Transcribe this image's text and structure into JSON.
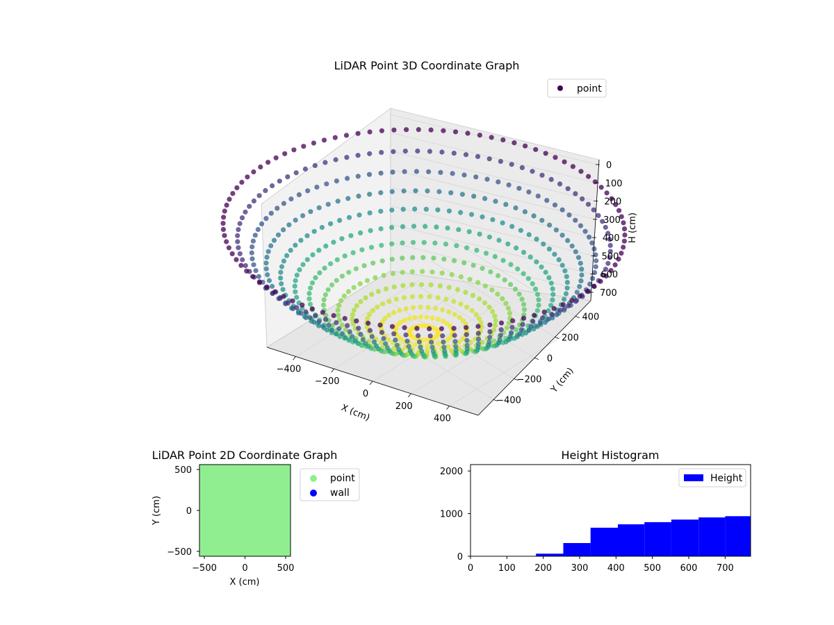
{
  "chart_data": [
    {
      "type": "scatter",
      "projection": "3d",
      "title": "LiDAR Point 3D Coordinate Graph",
      "xlabel": "X (cm)",
      "ylabel": "Y (cm)",
      "zlabel": "H (cm)",
      "xticks": [
        "−400",
        "−200",
        "0",
        "200",
        "400"
      ],
      "yticks": [
        "−400",
        "−200",
        "0",
        "200",
        "400"
      ],
      "zticks": [
        "0",
        "100",
        "200",
        "300",
        "400",
        "500",
        "600",
        "700"
      ],
      "xlim": [
        -550,
        550
      ],
      "ylim": [
        -550,
        550
      ],
      "zlim": [
        0,
        780
      ],
      "z_inverted": true,
      "grid": true,
      "colormap": "viridis",
      "legend": {
        "position": "top-right",
        "entries": [
          {
            "label": "point",
            "color": "#440154"
          }
        ]
      },
      "surface": "bowl-shaped point cloud: height increases from ~780 cm at the center to ~0 cm at radius ~550 cm",
      "series": [
        {
          "name": "point"
        }
      ]
    },
    {
      "type": "scatter",
      "title": "LiDAR Point 2D Coordinate Graph",
      "xlabel": "X (cm)",
      "ylabel": "Y (cm)",
      "xticks": [
        "−500",
        "0",
        "500"
      ],
      "yticks": [
        "−500",
        "0",
        "500"
      ],
      "xlim": [
        -560,
        560
      ],
      "ylim": [
        -560,
        560
      ],
      "legend": {
        "position": "outside-right",
        "entries": [
          {
            "label": "point",
            "color": "#90ee90"
          },
          {
            "label": "wall",
            "color": "#0000ff"
          }
        ]
      },
      "series": [
        {
          "name": "point",
          "color": "#90ee90",
          "coverage": "fills entire plot area"
        },
        {
          "name": "wall",
          "color": "#0000ff"
        }
      ]
    },
    {
      "type": "bar",
      "subtype": "histogram",
      "title": "Height Histogram",
      "xlabel": "",
      "ylabel": "",
      "xticks": [
        "0",
        "100",
        "200",
        "300",
        "400",
        "500",
        "600",
        "700"
      ],
      "yticks": [
        "0",
        "1000",
        "2000"
      ],
      "xlim": [
        0,
        770
      ],
      "ylim": [
        0,
        2150
      ],
      "color": "#0000ff",
      "legend": {
        "position": "top-right",
        "entries": [
          {
            "label": "Height",
            "color": "#0000ff"
          }
        ]
      },
      "bins": [
        {
          "start": 180,
          "end": 255,
          "count": 60
        },
        {
          "start": 255,
          "end": 330,
          "count": 310
        },
        {
          "start": 330,
          "end": 405,
          "count": 670
        },
        {
          "start": 405,
          "end": 478,
          "count": 750
        },
        {
          "start": 478,
          "end": 552,
          "count": 800
        },
        {
          "start": 552,
          "end": 627,
          "count": 860
        },
        {
          "start": 627,
          "end": 700,
          "count": 910
        },
        {
          "start": 700,
          "end": 770,
          "count": 940
        }
      ]
    }
  ]
}
